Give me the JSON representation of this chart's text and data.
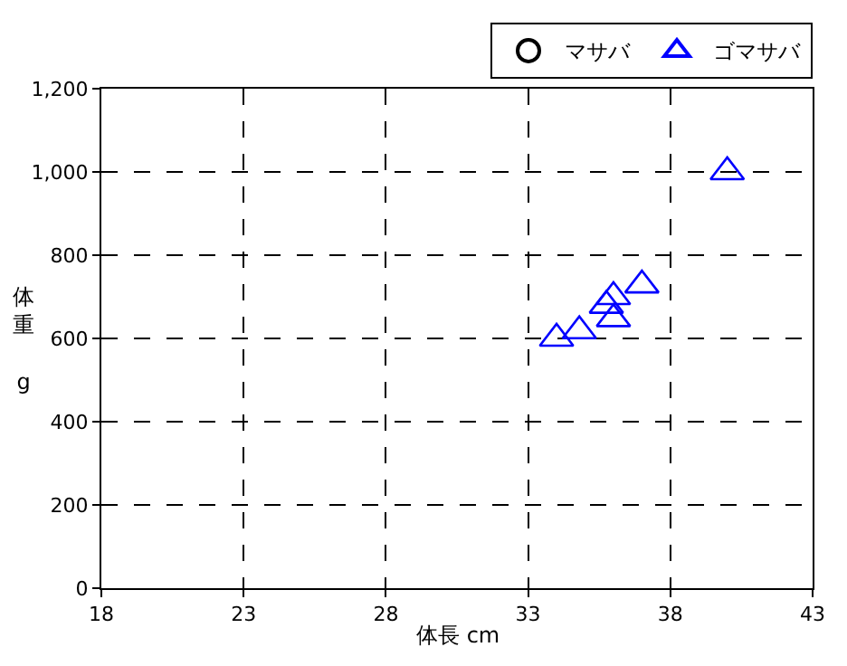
{
  "chart_data": {
    "type": "scatter",
    "xlabel": "体長 cm",
    "ylabel": "体重 g",
    "xlim": [
      18,
      43
    ],
    "xticks": [
      18,
      23,
      28,
      33,
      38,
      43
    ],
    "ylim": [
      0,
      1200
    ],
    "yticks": [
      0,
      {
        "value": 200,
        "label": "200"
      },
      {
        "value": 400,
        "label": "400"
      },
      {
        "value": 600,
        "label": "600"
      },
      {
        "value": 800,
        "label": "800"
      },
      {
        "value": 1000,
        "label": "1,000"
      },
      {
        "value": 1200,
        "label": "1,200"
      }
    ],
    "grid": true,
    "legend": "top right",
    "series": [
      {
        "name": "マサバ",
        "color": "#000000",
        "marker": "circle"
      },
      {
        "name": "ゴマサバ",
        "color": "#0000ff",
        "marker": "triangle",
        "x": [
          34.0,
          34.8,
          35.75,
          36.0,
          36.0,
          37.0,
          40.0
        ],
        "values": [
          600,
          618,
          679,
          700,
          647,
          728,
          1000
        ]
      }
    ]
  }
}
